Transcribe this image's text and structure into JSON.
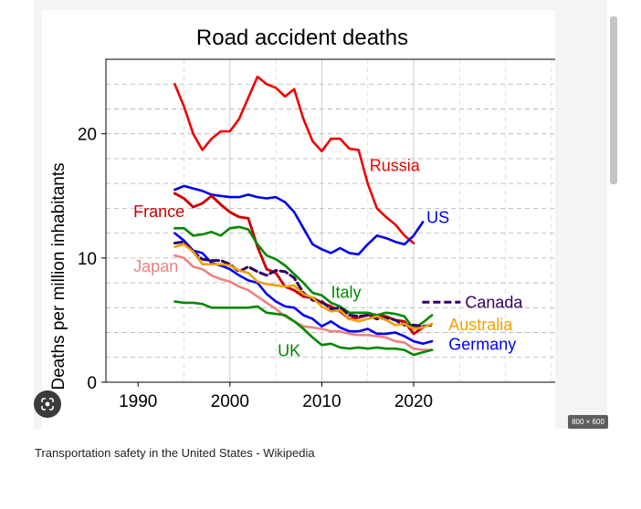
{
  "viewer": {
    "size_badge": "800 × 600",
    "caption": "Transportation safety in the United States - Wikipedia",
    "lens_icon": "google-lens-icon"
  },
  "chart_data": {
    "type": "line",
    "title": "Road accident deaths",
    "xlabel": "",
    "ylabel": "Deaths per million inhabitants",
    "xlim": [
      1986.5,
      2036.5
    ],
    "ylim": [
      0,
      26
    ],
    "x_ticks": [
      1990,
      2000,
      2010,
      2020
    ],
    "y_ticks": [
      0,
      10,
      20
    ],
    "grid": true,
    "legend": "inline labels at line ends",
    "series": [
      {
        "name": "Russia",
        "color": "#ee0000",
        "dash": "",
        "x": [
          1994,
          1995,
          1996,
          1997,
          1998,
          1999,
          2000,
          2001,
          2002,
          2003,
          2004,
          2005,
          2006,
          2007,
          2008,
          2009,
          2010,
          2011,
          2012,
          2013,
          2014,
          2015,
          2016,
          2017,
          2018,
          2019,
          2020
        ],
        "y": [
          24.0,
          22.2,
          20.0,
          18.7,
          19.6,
          20.2,
          20.2,
          21.2,
          22.9,
          24.6,
          24.0,
          23.7,
          23.0,
          23.6,
          21.2,
          19.4,
          18.6,
          19.6,
          19.6,
          18.8,
          18.7,
          16.0,
          14.0,
          13.3,
          12.7,
          11.8,
          11.2
        ]
      },
      {
        "name": "US",
        "color": "#0000ee",
        "dash": "",
        "x": [
          1994,
          1995,
          1996,
          1997,
          1998,
          1999,
          2000,
          2001,
          2002,
          2003,
          2004,
          2005,
          2006,
          2007,
          2008,
          2009,
          2010,
          2011,
          2012,
          2013,
          2014,
          2015,
          2016,
          2017,
          2018,
          2019,
          2020,
          2021
        ],
        "y": [
          15.5,
          15.8,
          15.6,
          15.4,
          15.1,
          15.0,
          14.9,
          14.9,
          15.1,
          14.9,
          14.8,
          14.9,
          14.5,
          13.7,
          12.4,
          11.1,
          10.7,
          10.4,
          10.8,
          10.4,
          10.3,
          11.1,
          11.8,
          11.6,
          11.3,
          11.1,
          11.8,
          12.9
        ]
      },
      {
        "name": "France",
        "color": "#cc0000",
        "dash": "2,2",
        "x": [
          1994,
          1995,
          1996,
          1997,
          1998,
          1999,
          2000,
          2001,
          2002,
          2003,
          2004,
          2005,
          2006,
          2007,
          2008,
          2009,
          2010,
          2011,
          2012,
          2013,
          2014,
          2015,
          2016,
          2017,
          2018,
          2019,
          2020,
          2021
        ],
        "y": [
          15.2,
          14.8,
          14.1,
          14.4,
          15.0,
          14.3,
          13.7,
          13.3,
          13.2,
          10.9,
          9.1,
          8.8,
          7.7,
          7.4,
          6.9,
          6.8,
          6.4,
          6.1,
          5.7,
          5.1,
          5.2,
          5.4,
          5.4,
          5.3,
          5.0,
          4.9,
          3.9,
          4.4
        ]
      },
      {
        "name": "Italy",
        "color": "#008800",
        "dash": "",
        "x": [
          1994,
          1995,
          1996,
          1997,
          1998,
          1999,
          2000,
          2001,
          2002,
          2003,
          2004,
          2005,
          2006,
          2007,
          2008,
          2009,
          2010,
          2011,
          2012,
          2013,
          2014,
          2015,
          2016,
          2017,
          2018,
          2019,
          2020,
          2021,
          2022
        ],
        "y": [
          12.4,
          12.4,
          11.8,
          11.9,
          12.1,
          11.8,
          12.4,
          12.5,
          12.3,
          11.1,
          10.2,
          9.9,
          9.4,
          8.7,
          8.0,
          7.2,
          7.0,
          6.4,
          6.1,
          5.6,
          5.6,
          5.6,
          5.4,
          5.6,
          5.5,
          5.3,
          4.3,
          4.8,
          5.4
        ]
      },
      {
        "name": "Germany",
        "color": "#0000ee",
        "dash": "",
        "x": [
          1994,
          1995,
          1996,
          1997,
          1998,
          1999,
          2000,
          2001,
          2002,
          2003,
          2004,
          2005,
          2006,
          2007,
          2008,
          2009,
          2010,
          2011,
          2012,
          2013,
          2014,
          2015,
          2016,
          2017,
          2018,
          2019,
          2020,
          2021,
          2022
        ],
        "y": [
          12.0,
          11.4,
          10.6,
          10.4,
          9.6,
          9.4,
          9.1,
          8.6,
          8.2,
          8.0,
          7.1,
          6.5,
          6.1,
          6.0,
          5.4,
          5.1,
          4.5,
          4.9,
          4.4,
          4.1,
          4.1,
          4.3,
          3.9,
          3.9,
          4.0,
          3.7,
          3.3,
          3.1,
          3.3
        ]
      },
      {
        "name": "Canada",
        "color": "#330066",
        "dash": "8,4",
        "x": [
          1994,
          1995,
          1996,
          1997,
          1998,
          1999,
          2000,
          2001,
          2002,
          2003,
          2004,
          2005,
          2006,
          2007,
          2008,
          2009,
          2010,
          2011,
          2012,
          2013,
          2014,
          2015,
          2016,
          2017,
          2018,
          2019,
          2020,
          2021,
          2022
        ],
        "y": [
          11.2,
          11.3,
          10.5,
          9.9,
          9.8,
          9.8,
          9.5,
          8.9,
          9.3,
          8.9,
          8.6,
          9.0,
          8.9,
          8.4,
          7.2,
          6.6,
          6.5,
          5.9,
          6.0,
          5.4,
          5.3,
          5.4,
          5.1,
          5.2,
          5.0,
          4.6,
          4.6,
          4.5,
          4.6
        ]
      },
      {
        "name": "Australia",
        "color": "#f0a000",
        "dash": "",
        "x": [
          1994,
          1995,
          1996,
          1997,
          1998,
          1999,
          2000,
          2001,
          2002,
          2003,
          2004,
          2005,
          2006,
          2007,
          2008,
          2009,
          2010,
          2011,
          2012,
          2013,
          2014,
          2015,
          2016,
          2017,
          2018,
          2019,
          2020,
          2021,
          2022
        ],
        "y": [
          10.9,
          11.1,
          10.5,
          9.5,
          9.5,
          9.5,
          9.4,
          9.0,
          8.8,
          8.1,
          7.9,
          7.8,
          7.7,
          7.8,
          7.1,
          6.8,
          6.1,
          5.7,
          5.8,
          5.1,
          4.9,
          5.1,
          5.3,
          5.0,
          4.6,
          4.7,
          4.3,
          4.4,
          4.7
        ]
      },
      {
        "name": "Japan",
        "color": "#f08080",
        "dash": "",
        "x": [
          1994,
          1995,
          1996,
          1997,
          1998,
          1999,
          2000,
          2001,
          2002,
          2003,
          2004,
          2005,
          2006,
          2007,
          2008,
          2009,
          2010,
          2011,
          2012,
          2013,
          2014,
          2015,
          2016,
          2017,
          2018,
          2019,
          2020,
          2021,
          2022
        ],
        "y": [
          10.2,
          10.0,
          9.3,
          9.1,
          8.6,
          8.3,
          8.1,
          7.7,
          7.4,
          6.9,
          6.4,
          5.9,
          5.3,
          4.9,
          4.5,
          4.4,
          4.3,
          4.1,
          4.1,
          3.9,
          3.8,
          3.8,
          3.7,
          3.6,
          3.3,
          3.2,
          2.7,
          2.6,
          2.6
        ]
      },
      {
        "name": "UK",
        "color": "#008800",
        "dash": "",
        "x": [
          1994,
          1995,
          1996,
          1997,
          1998,
          1999,
          2000,
          2001,
          2002,
          2003,
          2004,
          2005,
          2006,
          2007,
          2008,
          2009,
          2010,
          2011,
          2012,
          2013,
          2014,
          2015,
          2016,
          2017,
          2018,
          2019,
          2020,
          2021,
          2022
        ],
        "y": [
          6.5,
          6.4,
          6.4,
          6.3,
          6.0,
          6.0,
          6.0,
          6.0,
          6.0,
          6.1,
          5.6,
          5.5,
          5.4,
          4.9,
          4.3,
          3.6,
          3.0,
          3.1,
          2.8,
          2.7,
          2.8,
          2.7,
          2.8,
          2.7,
          2.7,
          2.6,
          2.2,
          2.4,
          2.6
        ]
      }
    ],
    "annotations": [
      {
        "series": "Russia",
        "label": "Russia",
        "x": 2015.2,
        "y": 17.0,
        "color": "#ee0000"
      },
      {
        "series": "US",
        "label": "US",
        "x": 2021.4,
        "y": 12.8,
        "color": "#0000ee"
      },
      {
        "series": "France",
        "label": "France",
        "x": 1989.5,
        "y": 13.3,
        "color": "#cc0000"
      },
      {
        "series": "Japan",
        "label": "Japan",
        "x": 1989.5,
        "y": 8.9,
        "color": "#f08080"
      },
      {
        "series": "Italy",
        "label": "Italy",
        "x": 2011.0,
        "y": 6.8,
        "color": "#008800"
      },
      {
        "series": "Canada",
        "label": "Canada",
        "x": 2025.6,
        "y": 6.0,
        "color": "#330066",
        "key": true
      },
      {
        "series": "Australia",
        "label": "Australia",
        "x": 2023.8,
        "y": 4.2,
        "color": "#f0a000"
      },
      {
        "series": "Germany",
        "label": "Germany",
        "x": 2023.8,
        "y": 2.6,
        "color": "#0000ee"
      },
      {
        "series": "UK",
        "label": "UK",
        "x": 2005.2,
        "y": 2.1,
        "color": "#008800"
      }
    ]
  }
}
